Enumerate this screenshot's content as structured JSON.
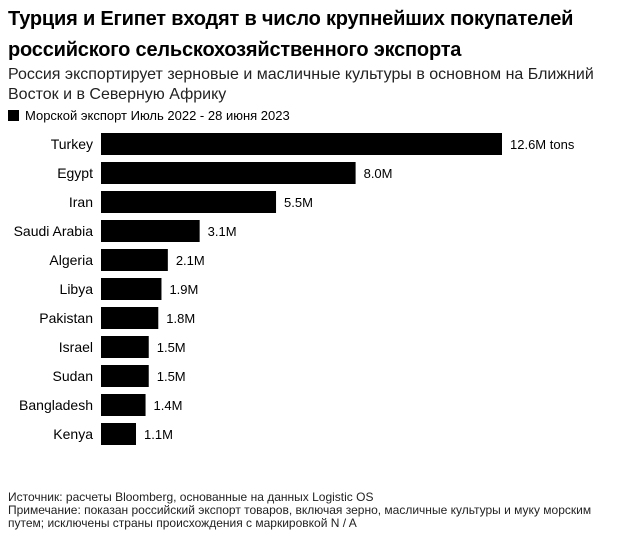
{
  "header": {
    "title": "Турция и Египет входят в число крупнейших покупателей российского сельскохозяйственного экспорта",
    "subtitle": "Россия экспортирует зерновые и масличные культуры в основном на Ближний Восток и в Северную Африку"
  },
  "legend": {
    "label": "Морской экспорт Июль 2022 - 28 июня 2023",
    "color": "#000000"
  },
  "footnote": {
    "source": "Источник: расчеты Bloomberg, основанные на данных Logistic OS",
    "note": "Примечание: показан российский экспорт товаров, включая зерно, масличные культуры и муку морским путем; исключены страны происхождения с маркировкой N / A"
  },
  "chart_data": {
    "type": "bar",
    "orientation": "horizontal",
    "categories": [
      "Turkey",
      "Egypt",
      "Iran",
      "Saudi Arabia",
      "Algeria",
      "Libya",
      "Pakistan",
      "Israel",
      "Sudan",
      "Bangladesh",
      "Kenya"
    ],
    "values": [
      12.6,
      8.0,
      5.5,
      3.1,
      2.1,
      1.9,
      1.8,
      1.5,
      1.5,
      1.4,
      1.1
    ],
    "data_labels": [
      "12.6M tons",
      "8.0M",
      "5.5M",
      "3.1M",
      "2.1M",
      "1.9M",
      "1.8M",
      "1.5M",
      "1.5M",
      "1.4M",
      "1.1M"
    ],
    "series": [
      {
        "name": "Морской экспорт Июль 2022 - 28 июня 2023",
        "values": [
          12.6,
          8.0,
          5.5,
          3.1,
          2.1,
          1.9,
          1.8,
          1.5,
          1.5,
          1.4,
          1.1
        ]
      }
    ],
    "unit": "M tons",
    "xlim": [
      0,
      12.6
    ],
    "grid": false,
    "legend_position": "top-left",
    "bar_color": "#000000"
  }
}
